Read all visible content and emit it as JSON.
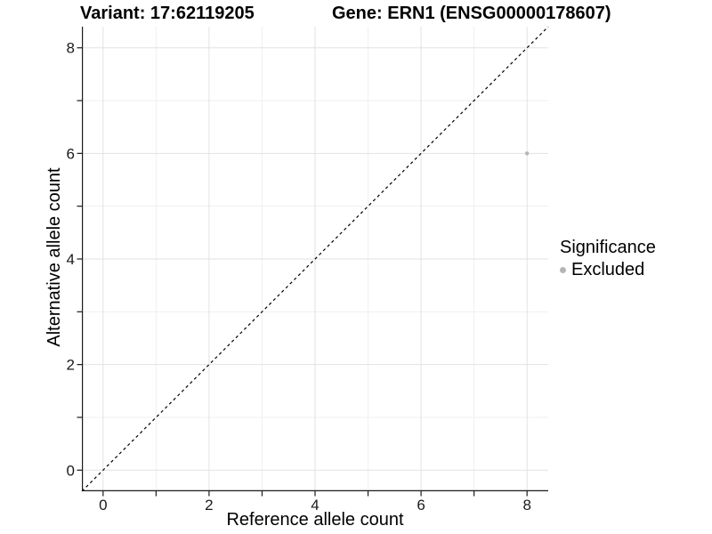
{
  "figure": {
    "titles": {
      "variant": "Variant: 17:62119205",
      "gene": "Gene: ERN1 (ENSG00000178607)"
    }
  },
  "legend": {
    "title": "Significance",
    "items": [
      {
        "label": "Excluded",
        "color": "#b5b5b5"
      }
    ]
  },
  "chart_data": {
    "type": "scatter",
    "title": "Variant: 17:62119205 | Gene: ERN1 (ENSG00000178607)",
    "xlabel": "Reference allele count",
    "ylabel": "Alternative allele count",
    "xlim": [
      -0.4,
      8.4
    ],
    "ylim": [
      -0.4,
      8.4
    ],
    "x_ticks": [
      0,
      1,
      2,
      3,
      4,
      5,
      6,
      7,
      8
    ],
    "x_tick_labels": [
      "0",
      "",
      "2",
      "",
      "4",
      "",
      "6",
      "",
      "8"
    ],
    "y_ticks": [
      0,
      1,
      2,
      3,
      4,
      5,
      6,
      7,
      8
    ],
    "y_tick_labels": [
      "0",
      "",
      "2",
      "",
      "4",
      "",
      "6",
      "",
      "8"
    ],
    "grid": {
      "on": true,
      "major": [
        0,
        2,
        4,
        6,
        8
      ],
      "minor": [
        1,
        3,
        5,
        7
      ],
      "major_color": "#e2e2e2",
      "minor_color": "#efefef"
    },
    "abline": {
      "slope": 1,
      "intercept": 0,
      "style": "dashed",
      "color": "#000000"
    },
    "series": [
      {
        "name": "Excluded",
        "color": "#b5b5b5",
        "points": [
          {
            "x": 8,
            "y": 6
          }
        ]
      }
    ],
    "point_radius": 2.2,
    "legend_position": "right"
  },
  "style": {
    "background": "#ffffff",
    "axis_color": "#1a1a1a",
    "tick_text_color": "#1a1a1a",
    "text_color": "#000000",
    "tick_font_size": 17
  }
}
